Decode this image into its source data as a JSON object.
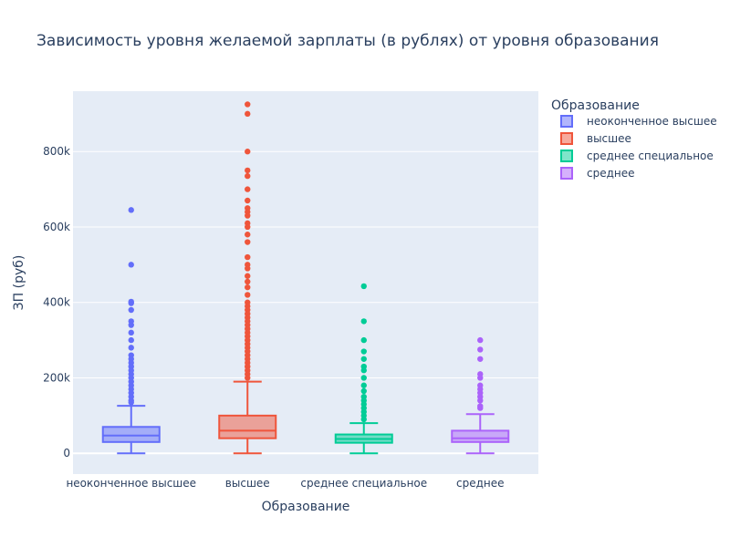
{
  "chart_data": {
    "type": "box",
    "title": "Зависимость уровня желаемой зарплаты (в рублях) от уровня образования",
    "xlabel": "Образование",
    "ylabel": "ЗП (руб)",
    "ylim": [
      -55000,
      960000
    ],
    "yticks": [
      0,
      200000,
      400000,
      600000,
      800000
    ],
    "ytick_labels": [
      "0",
      "200k",
      "400k",
      "600k",
      "800k"
    ],
    "categories": [
      "неоконченное высшее",
      "высшее",
      "среднее специальное",
      "среднее"
    ],
    "legend": {
      "title": "Образование",
      "placement": "top-right"
    },
    "grid": true,
    "series": [
      {
        "name": "неоконченное высшее",
        "color": "#636efa",
        "min": 0,
        "q1": 30000,
        "median": 47000,
        "q3": 70000,
        "max": 126000,
        "outliers": [
          645000,
          500000,
          402000,
          398000,
          380000,
          350000,
          340000,
          320000,
          300000,
          280000,
          260000,
          250000,
          240000,
          230000,
          220000,
          210000,
          200000,
          190000,
          180000,
          170000,
          160000,
          150000,
          140000,
          135000
        ]
      },
      {
        "name": "высшее",
        "color": "#ef553b",
        "min": 0,
        "q1": 40000,
        "median": 60000,
        "q3": 100000,
        "max": 190000,
        "outliers": [
          925000,
          900000,
          800000,
          750000,
          735000,
          700000,
          670000,
          650000,
          640000,
          630000,
          610000,
          600000,
          580000,
          560000,
          520000,
          500000,
          490000,
          470000,
          455000,
          440000,
          420000,
          400000,
          390000,
          380000,
          370000,
          360000,
          350000,
          340000,
          330000,
          320000,
          310000,
          300000,
          290000,
          280000,
          270000,
          260000,
          250000,
          240000,
          230000,
          220000,
          210000,
          200000
        ]
      },
      {
        "name": "среднее специальное",
        "color": "#00cc96",
        "min": 0,
        "q1": 28000,
        "median": 38000,
        "q3": 50000,
        "max": 80000,
        "outliers": [
          443000,
          350000,
          300000,
          270000,
          250000,
          230000,
          220000,
          200000,
          180000,
          165000,
          150000,
          140000,
          130000,
          120000,
          110000,
          100000,
          90000
        ]
      },
      {
        "name": "среднее",
        "color": "#ab63fa",
        "min": 0,
        "q1": 30000,
        "median": 40000,
        "q3": 60000,
        "max": 104000,
        "outliers": [
          300000,
          275000,
          250000,
          210000,
          200000,
          180000,
          170000,
          160000,
          150000,
          140000,
          125000,
          120000
        ]
      }
    ]
  }
}
